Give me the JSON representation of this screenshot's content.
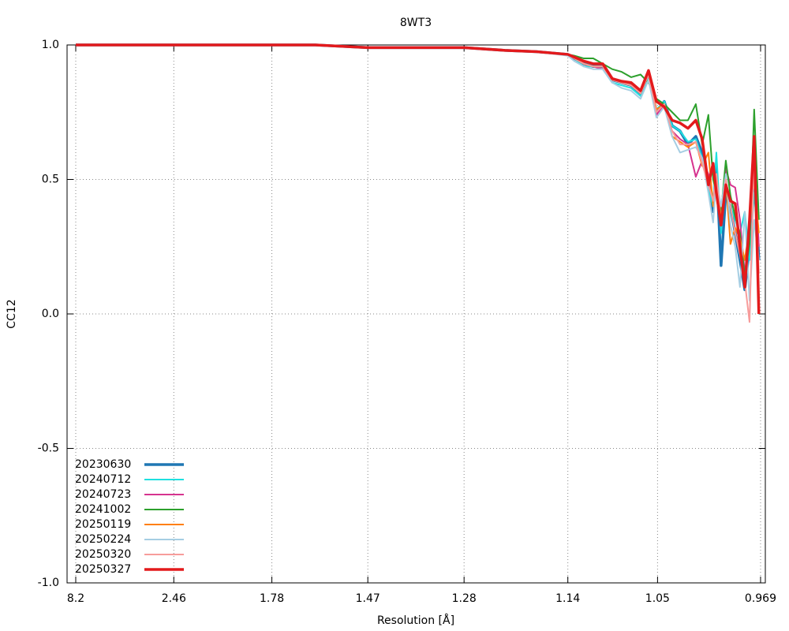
{
  "chart_data": {
    "type": "line",
    "title": "8WT3",
    "x_label": "Resolution [Å]",
    "y_label": "CC12",
    "xscale": "inverse-square",
    "grid": true,
    "legend": "lower left",
    "xlim": [
      25.2,
      0.9657
    ],
    "ylim": [
      -1,
      1
    ],
    "xticks": [
      8.2,
      2.46,
      1.78,
      1.47,
      1.28,
      1.14,
      1.05,
      0.969
    ],
    "yticks": [
      {
        "value": -1,
        "label": "-1.0"
      },
      -0.5,
      {
        "value": 0,
        "label": "0.0"
      },
      0.5,
      {
        "value": 1,
        "label": "1.0"
      }
    ],
    "x": [
      8.2,
      3.531,
      2.46,
      1.955,
      1.78,
      1.617,
      1.47,
      1.361,
      1.28,
      1.219,
      1.1774,
      1.14,
      1.1327,
      1.1223,
      1.1122,
      1.1023,
      1.0927,
      1.0834,
      1.0743,
      1.0654,
      1.0581,
      1.051,
      1.0441,
      1.0373,
      1.0306,
      1.024,
      1.0176,
      1.0125,
      1.0076,
      1.0039,
      1.0014,
      0.9978,
      0.9942,
      0.9907,
      0.9872,
      0.9837,
      0.9802,
      0.9768,
      0.9735,
      0.9702
    ],
    "series": [
      {
        "name": "20230630",
        "color": "#1f77b4",
        "width": 3.5,
        "values": [
          1.0,
          1.0,
          1.0,
          1.0,
          1.0,
          1.0,
          0.99,
          0.99,
          0.99,
          0.98,
          0.975,
          0.965,
          0.95,
          0.93,
          0.92,
          0.92,
          0.87,
          0.86,
          0.85,
          0.82,
          0.89,
          0.75,
          0.79,
          0.7,
          0.68,
          0.63,
          0.66,
          0.6,
          0.5,
          0.38,
          0.55,
          0.18,
          0.45,
          0.4,
          0.3,
          0.2,
          0.09,
          0.25,
          0.55,
          0.2
        ]
      },
      {
        "name": "20240712",
        "color": "#1ee0e0",
        "width": 2,
        "values": [
          1.0,
          1.0,
          1.0,
          1.0,
          1.0,
          1.0,
          0.99,
          0.99,
          0.99,
          0.98,
          0.975,
          0.965,
          0.95,
          0.92,
          0.92,
          0.91,
          0.86,
          0.85,
          0.84,
          0.81,
          0.88,
          0.76,
          0.79,
          0.7,
          0.68,
          0.64,
          0.65,
          0.58,
          0.46,
          0.4,
          0.6,
          0.3,
          0.5,
          0.4,
          0.35,
          0.3,
          0.38,
          0.2,
          0.45,
          0.25
        ]
      },
      {
        "name": "20240723",
        "color": "#d6338f",
        "width": 2,
        "values": [
          1.0,
          1.0,
          1.0,
          1.0,
          1.0,
          1.0,
          0.99,
          0.99,
          0.99,
          0.98,
          0.975,
          0.965,
          0.95,
          0.93,
          0.92,
          0.91,
          0.87,
          0.86,
          0.85,
          0.82,
          0.89,
          0.74,
          0.78,
          0.68,
          0.65,
          0.63,
          0.51,
          0.57,
          0.52,
          0.42,
          0.5,
          0.36,
          0.54,
          0.48,
          0.47,
          0.35,
          0.15,
          0.28,
          0.6,
          0.25
        ]
      },
      {
        "name": "20241002",
        "color": "#2ca02c",
        "width": 2,
        "values": [
          1.0,
          1.0,
          1.0,
          1.0,
          1.0,
          1.0,
          0.99,
          0.99,
          0.99,
          0.98,
          0.975,
          0.965,
          0.96,
          0.95,
          0.95,
          0.93,
          0.91,
          0.9,
          0.88,
          0.89,
          0.86,
          0.8,
          0.78,
          0.75,
          0.72,
          0.72,
          0.78,
          0.63,
          0.74,
          0.5,
          0.45,
          0.38,
          0.57,
          0.44,
          0.36,
          0.3,
          0.14,
          0.26,
          0.76,
          0.35
        ]
      },
      {
        "name": "20250119",
        "color": "#ff7f0e",
        "width": 2,
        "values": [
          1.0,
          1.0,
          1.0,
          1.0,
          1.0,
          1.0,
          0.99,
          0.99,
          0.99,
          0.98,
          0.975,
          0.965,
          0.95,
          0.93,
          0.92,
          0.92,
          0.87,
          0.86,
          0.85,
          0.82,
          0.89,
          0.76,
          0.78,
          0.66,
          0.64,
          0.62,
          0.64,
          0.55,
          0.6,
          0.4,
          0.52,
          0.35,
          0.5,
          0.26,
          0.32,
          0.28,
          0.2,
          0.33,
          0.5,
          0.3
        ]
      },
      {
        "name": "20250224",
        "color": "#a6cee3",
        "width": 2,
        "values": [
          1.0,
          1.0,
          1.0,
          1.0,
          1.0,
          1.0,
          0.99,
          0.99,
          0.99,
          0.98,
          0.975,
          0.96,
          0.94,
          0.92,
          0.91,
          0.91,
          0.86,
          0.84,
          0.83,
          0.8,
          0.87,
          0.73,
          0.77,
          0.66,
          0.6,
          0.61,
          0.62,
          0.58,
          0.45,
          0.34,
          0.5,
          0.4,
          0.52,
          0.33,
          0.25,
          0.1,
          0.38,
          0.05,
          0.35,
          0.2
        ]
      },
      {
        "name": "20250320",
        "color": "#f79c9b",
        "width": 2,
        "values": [
          1.0,
          1.0,
          1.0,
          1.0,
          1.0,
          1.0,
          0.99,
          0.99,
          0.99,
          0.98,
          0.975,
          0.965,
          0.95,
          0.93,
          0.92,
          0.92,
          0.87,
          0.86,
          0.85,
          0.82,
          0.89,
          0.75,
          0.78,
          0.68,
          0.63,
          0.63,
          0.64,
          0.56,
          0.48,
          0.42,
          0.52,
          0.33,
          0.5,
          0.4,
          0.3,
          0.22,
          0.12,
          -0.03,
          0.6,
          0.15
        ]
      },
      {
        "name": "20250327",
        "color": "#e31a1c",
        "width": 3.5,
        "values": [
          1.0,
          1.0,
          1.0,
          1.0,
          1.0,
          1.0,
          0.99,
          0.99,
          0.99,
          0.98,
          0.975,
          0.965,
          0.955,
          0.94,
          0.93,
          0.93,
          0.875,
          0.865,
          0.86,
          0.83,
          0.905,
          0.79,
          0.77,
          0.72,
          0.71,
          0.69,
          0.72,
          0.65,
          0.48,
          0.56,
          0.45,
          0.33,
          0.48,
          0.42,
          0.41,
          0.25,
          0.1,
          0.35,
          0.66,
          0
        ]
      }
    ]
  }
}
